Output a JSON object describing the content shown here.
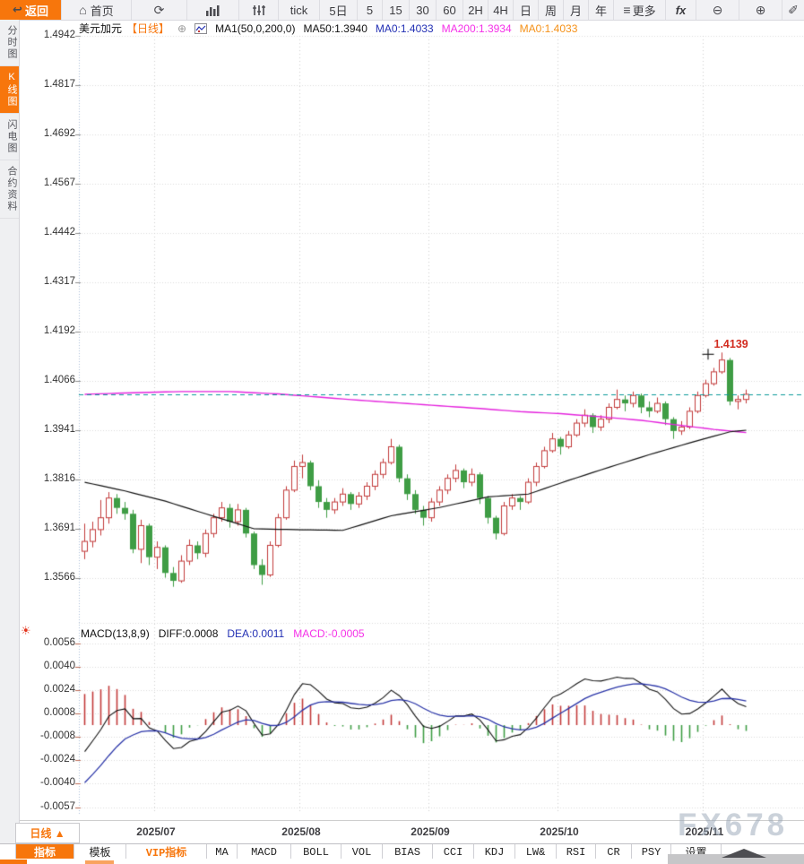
{
  "toolbar": {
    "back_label": "返回",
    "home_label": "首页",
    "more_label": "更多",
    "fx_label": "fx",
    "periods": [
      "tick",
      "5日",
      "5",
      "15",
      "30",
      "60",
      "2H",
      "4H",
      "日",
      "周",
      "月",
      "年"
    ]
  },
  "icons": {
    "back": "↩",
    "home": "⌂",
    "refresh": "⟳",
    "more": "≡",
    "zoom_out": "⊖",
    "zoom_in": "⊕",
    "pencil": "✐",
    "plus_circle": "⊕",
    "sun": "☀"
  },
  "sidebar": {
    "items": [
      {
        "label": "分时图",
        "active": false
      },
      {
        "label": "K线图",
        "active": true
      },
      {
        "label": "闪电图",
        "active": false
      },
      {
        "label": "合约资料",
        "active": false
      }
    ]
  },
  "chart_header": {
    "symbol": "美元加元",
    "period": "【日线】",
    "ma_settings": "MA1(50,0,200,0)",
    "ma50": "MA50:1.3940",
    "ma0_a": "MA0:1.4033",
    "ma200": "MA200:1.3934",
    "ma0_b": "MA0:1.4033"
  },
  "macd_header": {
    "title": "MACD(13,8,9)",
    "diff": "DIFF:0.0008",
    "dea": "DEA:0.0011",
    "macd": "MACD:-0.0005"
  },
  "bottom": {
    "period_button": "日线 ▲",
    "tabs": [
      {
        "label": "指标",
        "state": "active"
      },
      {
        "label": "模板",
        "state": ""
      },
      {
        "label": "VIP指标",
        "state": "vip"
      },
      {
        "label": "MA",
        "state": ""
      },
      {
        "label": "MACD",
        "state": ""
      },
      {
        "label": "BOLL",
        "state": ""
      },
      {
        "label": "VOL",
        "state": ""
      },
      {
        "label": "BIAS",
        "state": ""
      },
      {
        "label": "CCI",
        "state": ""
      },
      {
        "label": "KDJ",
        "state": ""
      },
      {
        "label": "LW&",
        "state": ""
      },
      {
        "label": "RSI",
        "state": ""
      },
      {
        "label": "CR",
        "state": ""
      },
      {
        "label": "PSY",
        "state": ""
      },
      {
        "label": "设置",
        "state": ""
      }
    ]
  },
  "watermark": "FX678",
  "colors": {
    "accent": "#f7760c",
    "up": "#c23a3a",
    "down": "#3f9d45",
    "ma50": "#111111",
    "ma200": "#e423dd",
    "dea": "#2a35a8",
    "last_price_line": "#0a9a9a",
    "price_tag": "#d22c20",
    "macd_text": "#f531e8"
  },
  "chart_data": {
    "type": "candlestick+macd",
    "symbol": "美元加元 (USD/CAD)",
    "period": "日线",
    "y_ticks": [
      "1.4942",
      "1.4817",
      "1.4692",
      "1.4567",
      "1.4442",
      "1.4317",
      "1.4192",
      "1.4066",
      "1.3941",
      "1.3816",
      "1.3691",
      "1.3566"
    ],
    "grid_top_price": 1.4942,
    "grid_step": 0.0125,
    "x_ticks": [
      "2025/07",
      "2025/08",
      "2025/09",
      "2025/10",
      "2025/11"
    ],
    "x_tick_candle_index": [
      9,
      27,
      43,
      59,
      77
    ],
    "last_price": 1.4033,
    "high_label": {
      "text": "1.4139",
      "value": 1.4139,
      "candle_index": 79
    },
    "candles": [
      [
        1.3635,
        1.3705,
        1.3615,
        1.366
      ],
      [
        1.366,
        1.371,
        1.3645,
        1.369
      ],
      [
        1.369,
        1.3765,
        1.3675,
        1.372
      ],
      [
        1.372,
        1.3785,
        1.3705,
        1.377
      ],
      [
        1.377,
        1.378,
        1.373,
        1.3745
      ],
      [
        1.3745,
        1.376,
        1.3715,
        1.373
      ],
      [
        1.373,
        1.374,
        1.363,
        1.364
      ],
      [
        1.364,
        1.3715,
        1.3605,
        1.37
      ],
      [
        1.37,
        1.3705,
        1.36,
        1.362
      ],
      [
        1.362,
        1.366,
        1.359,
        1.3645
      ],
      [
        1.3645,
        1.365,
        1.3568,
        1.358
      ],
      [
        1.358,
        1.3595,
        1.3545,
        1.356
      ],
      [
        1.356,
        1.3625,
        1.3555,
        1.361
      ],
      [
        1.361,
        1.3665,
        1.36,
        1.365
      ],
      [
        1.365,
        1.366,
        1.3615,
        1.363
      ],
      [
        1.363,
        1.369,
        1.362,
        1.368
      ],
      [
        1.368,
        1.373,
        1.367,
        1.372
      ],
      [
        1.372,
        1.376,
        1.371,
        1.3745
      ],
      [
        1.3745,
        1.3755,
        1.3695,
        1.371
      ],
      [
        1.371,
        1.3755,
        1.37,
        1.374
      ],
      [
        1.374,
        1.3745,
        1.367,
        1.368
      ],
      [
        1.368,
        1.3685,
        1.359,
        1.36
      ],
      [
        1.36,
        1.3615,
        1.355,
        1.3575
      ],
      [
        1.3575,
        1.366,
        1.357,
        1.365
      ],
      [
        1.365,
        1.373,
        1.3645,
        1.372
      ],
      [
        1.372,
        1.38,
        1.3715,
        1.379
      ],
      [
        1.379,
        1.3865,
        1.3785,
        1.385
      ],
      [
        1.385,
        1.388,
        1.382,
        1.386
      ],
      [
        1.386,
        1.3865,
        1.379,
        1.38
      ],
      [
        1.38,
        1.3815,
        1.3745,
        1.376
      ],
      [
        1.376,
        1.377,
        1.372,
        1.374
      ],
      [
        1.374,
        1.377,
        1.373,
        1.376
      ],
      [
        1.376,
        1.3795,
        1.375,
        1.378
      ],
      [
        1.378,
        1.3785,
        1.374,
        1.3755
      ],
      [
        1.3755,
        1.3785,
        1.3745,
        1.3775
      ],
      [
        1.3775,
        1.381,
        1.3765,
        1.38
      ],
      [
        1.38,
        1.384,
        1.379,
        1.383
      ],
      [
        1.383,
        1.387,
        1.382,
        1.386
      ],
      [
        1.386,
        1.392,
        1.3855,
        1.39
      ],
      [
        1.39,
        1.3905,
        1.381,
        1.382
      ],
      [
        1.382,
        1.383,
        1.3765,
        1.378
      ],
      [
        1.378,
        1.379,
        1.373,
        1.374
      ],
      [
        1.374,
        1.375,
        1.37,
        1.372
      ],
      [
        1.372,
        1.377,
        1.371,
        1.376
      ],
      [
        1.376,
        1.38,
        1.375,
        1.379
      ],
      [
        1.379,
        1.383,
        1.378,
        1.382
      ],
      [
        1.382,
        1.3855,
        1.381,
        1.384
      ],
      [
        1.384,
        1.3845,
        1.3795,
        1.381
      ],
      [
        1.381,
        1.3845,
        1.38,
        1.383
      ],
      [
        1.383,
        1.3835,
        1.3755,
        1.377
      ],
      [
        1.377,
        1.3775,
        1.3705,
        1.372
      ],
      [
        1.372,
        1.3725,
        1.3665,
        1.368
      ],
      [
        1.368,
        1.376,
        1.3675,
        1.375
      ],
      [
        1.375,
        1.378,
        1.374,
        1.377
      ],
      [
        1.377,
        1.3775,
        1.374,
        1.376
      ],
      [
        1.376,
        1.382,
        1.3755,
        1.381
      ],
      [
        1.381,
        1.386,
        1.38,
        1.385
      ],
      [
        1.385,
        1.39,
        1.3845,
        1.389
      ],
      [
        1.389,
        1.3935,
        1.3885,
        1.392
      ],
      [
        1.392,
        1.3925,
        1.388,
        1.39
      ],
      [
        1.39,
        1.394,
        1.3895,
        1.393
      ],
      [
        1.393,
        1.397,
        1.3925,
        1.396
      ],
      [
        1.396,
        1.3995,
        1.395,
        1.398
      ],
      [
        1.398,
        1.3985,
        1.3935,
        1.395
      ],
      [
        1.395,
        1.398,
        1.394,
        1.397
      ],
      [
        1.397,
        1.401,
        1.396,
        1.4
      ],
      [
        1.4,
        1.4045,
        1.3995,
        1.402
      ],
      [
        1.402,
        1.403,
        1.399,
        1.401
      ],
      [
        1.401,
        1.404,
        1.4,
        1.403
      ],
      [
        1.403,
        1.4035,
        1.3985,
        1.4
      ],
      [
        1.4,
        1.4015,
        1.3975,
        1.399
      ],
      [
        1.399,
        1.4025,
        1.3985,
        1.401
      ],
      [
        1.401,
        1.4015,
        1.3955,
        1.397
      ],
      [
        1.397,
        1.3975,
        1.392,
        1.394
      ],
      [
        1.394,
        1.3965,
        1.393,
        1.395
      ],
      [
        1.395,
        1.4,
        1.3945,
        1.399
      ],
      [
        1.399,
        1.404,
        1.3985,
        1.403
      ],
      [
        1.403,
        1.407,
        1.4025,
        1.406
      ],
      [
        1.406,
        1.41,
        1.4055,
        1.409
      ],
      [
        1.409,
        1.4139,
        1.4085,
        1.412
      ],
      [
        1.412,
        1.4125,
        1.4005,
        1.4015
      ],
      [
        1.4015,
        1.403,
        1.3995,
        1.402
      ],
      [
        1.402,
        1.4045,
        1.401,
        1.4033
      ]
    ],
    "ma50_points": [
      [
        0,
        1.381
      ],
      [
        5,
        1.3788
      ],
      [
        10,
        1.3762
      ],
      [
        15,
        1.373
      ],
      [
        21,
        1.3692
      ],
      [
        26,
        1.369
      ],
      [
        32,
        1.3688
      ],
      [
        38,
        1.3725
      ],
      [
        44,
        1.3746
      ],
      [
        50,
        1.3773
      ],
      [
        55,
        1.378
      ],
      [
        60,
        1.3815
      ],
      [
        65,
        1.3848
      ],
      [
        70,
        1.388
      ],
      [
        75,
        1.391
      ],
      [
        80,
        1.3938
      ],
      [
        82,
        1.3942
      ]
    ],
    "ma200_points": [
      [
        0,
        1.4033
      ],
      [
        6,
        1.4037
      ],
      [
        12,
        1.404
      ],
      [
        18,
        1.404
      ],
      [
        24,
        1.4034
      ],
      [
        29,
        1.4026
      ],
      [
        34,
        1.4018
      ],
      [
        39,
        1.4011
      ],
      [
        44,
        1.4004
      ],
      [
        49,
        1.3997
      ],
      [
        54,
        1.3989
      ],
      [
        59,
        1.3984
      ],
      [
        64,
        1.3976
      ],
      [
        69,
        1.3967
      ],
      [
        74,
        1.3954
      ],
      [
        78,
        1.3944
      ],
      [
        82,
        1.3936
      ]
    ],
    "macd": {
      "params": [
        13,
        8,
        9
      ],
      "ticks": [
        "0.0056",
        "0.0040",
        "0.0024",
        "0.0008",
        "-0.0008",
        "-0.0024",
        "-0.0040",
        "-0.0057"
      ],
      "tick_values": [
        0.0056,
        0.004,
        0.0024,
        0.0008,
        -0.0008,
        -0.0024,
        -0.004,
        -0.0057
      ],
      "diff_last": 0.0008,
      "dea_last": 0.0011,
      "hist_last": -0.0005
    }
  }
}
